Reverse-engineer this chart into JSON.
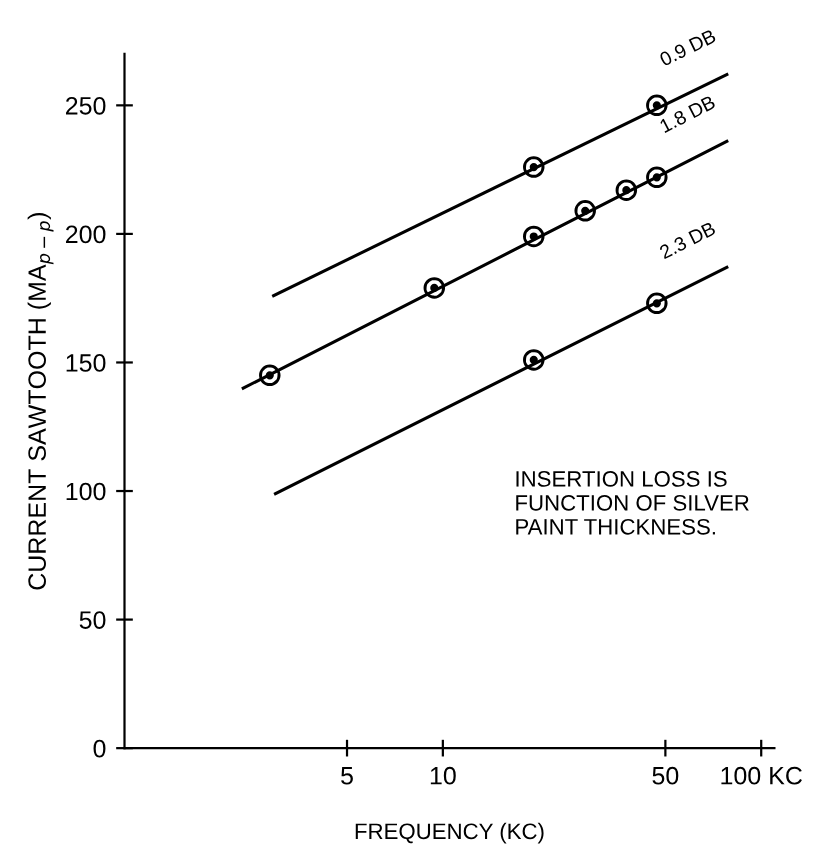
{
  "chart_data": {
    "type": "line",
    "xlabel": "FREQUENCY (KC)",
    "ylabel": "CURRENT SAWTOOTH (MA$_{p−p}$)",
    "log": "x",
    "xlim": [
      1,
      110
    ],
    "xticks": [
      5,
      10,
      50,
      {
        "value": 100,
        "label": "100 KC"
      }
    ],
    "ylim": [
      0,
      270
    ],
    "yticks": [
      0,
      50,
      100,
      150,
      200,
      250
    ],
    "grid": false,
    "legend": false,
    "series": [
      {
        "name": "0.9 DB",
        "color": "#000000",
        "marker": "none",
        "x": [
          2.94,
          78
        ],
        "values": [
          176,
          262
        ]
      },
      {
        "name": "1.8 DB",
        "color": "#000000",
        "marker": "none",
        "x": [
          2.36,
          78
        ],
        "values": [
          140,
          236
        ]
      },
      {
        "name": "2.3 DB",
        "color": "#000000",
        "marker": "none",
        "x": [
          2.98,
          78
        ],
        "values": [
          99,
          187
        ]
      },
      {
        "type": "scatter",
        "color": "#000000",
        "marker": "circle",
        "x": [
          19.3,
          47
        ],
        "values": [
          226,
          250
        ]
      },
      {
        "type": "scatter",
        "color": "#000000",
        "marker": "circle",
        "x": [
          2.86,
          9.4,
          19.3,
          28,
          37.7,
          47
        ],
        "values": [
          145,
          179,
          199,
          209,
          217,
          222
        ]
      },
      {
        "type": "scatter",
        "color": "#000000",
        "marker": "circle",
        "x": [
          19.3,
          47
        ],
        "values": [
          151,
          173
        ]
      }
    ],
    "annotations": [
      "INSERTION LOSS IS\nFUNCTION OF SILVER\nPAINT THICKNESS."
    ]
  }
}
